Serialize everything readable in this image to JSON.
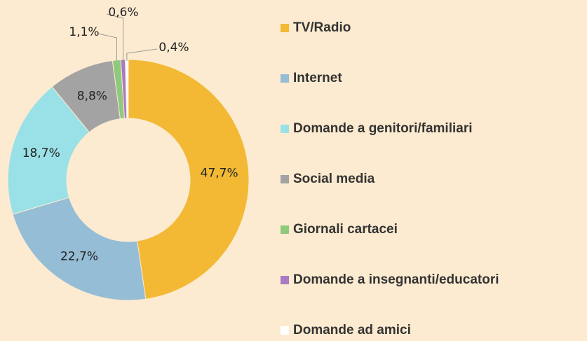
{
  "chart_data": {
    "type": "donut",
    "categories": [
      "TV/Radio",
      "Internet",
      "Domande a genitori/familiari",
      "Social media",
      "Giornali cartacei",
      "Domande a insegnanti/educatori",
      "Domande ad amici"
    ],
    "values": [
      47.7,
      22.7,
      18.7,
      8.8,
      1.1,
      0.6,
      0.4
    ],
    "value_labels": [
      "47,7%",
      "22,7%",
      "18,7%",
      "8,8%",
      "1,1%",
      "0,6%",
      "0,4%"
    ],
    "colors": [
      "#f3b935",
      "#95bdd6",
      "#9ae1e7",
      "#a3a3a3",
      "#8fc97e",
      "#a87bc3",
      "#ffffff"
    ],
    "legend": "right"
  }
}
